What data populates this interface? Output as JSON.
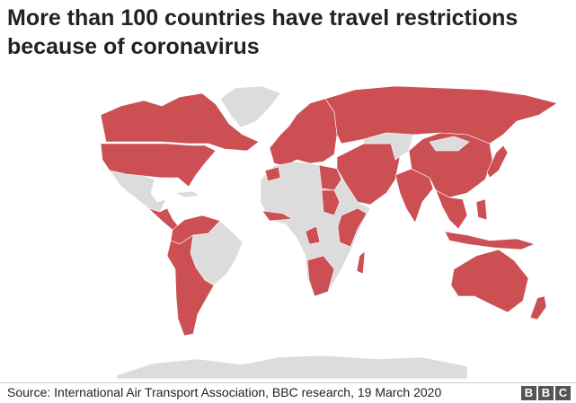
{
  "title_lines": [
    "More than 100 countries have travel restrictions",
    "because of coronavirus"
  ],
  "source": "Source:  International Air Transport Association, BBC research, 19 March 2020",
  "logo": [
    "B",
    "B",
    "C"
  ]
}
